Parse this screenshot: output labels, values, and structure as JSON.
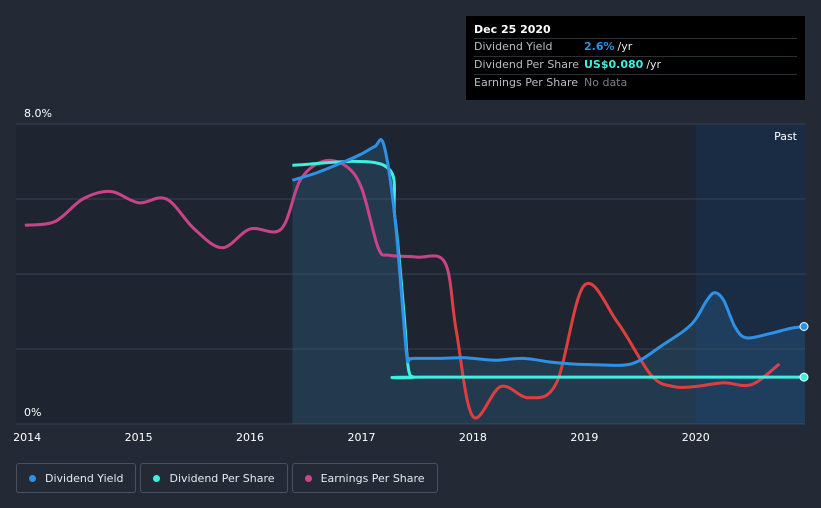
{
  "tooltip": {
    "date": "Dec 25 2020",
    "rows": [
      {
        "label": "Dividend Yield",
        "value": "2.6%",
        "unit": "/yr",
        "color": "#2e91e5"
      },
      {
        "label": "Dividend Per Share",
        "value": "US$0.080",
        "unit": "/yr",
        "color": "#3ff0e0"
      },
      {
        "label": "Earnings Per Share",
        "value": "No data",
        "unit": "",
        "color": "#7a7f88"
      }
    ]
  },
  "past_label": "Past",
  "legend": [
    {
      "label": "Dividend Yield",
      "color": "#2e91e5"
    },
    {
      "label": "Dividend Per Share",
      "color": "#3ff0e0"
    },
    {
      "label": "Earnings Per Share",
      "color": "#d0458a"
    }
  ],
  "colors": {
    "background": "#232a36",
    "past_region": "#1a2b44",
    "yield": "#2e91e5",
    "dps": "#3ff0e0",
    "eps_high": "#c94389",
    "eps_low": "#e03e3e",
    "grid": "#3a4150"
  },
  "chart_data": {
    "type": "line",
    "title": "",
    "xlabel": "",
    "ylabel": "",
    "xlim": [
      2013.9,
      2020.98
    ],
    "ylim": [
      0,
      8
    ],
    "y_ticks": [
      {
        "value": 8,
        "label": "8.0%"
      },
      {
        "value": 0,
        "label": "0%"
      }
    ],
    "y_gridlines": [
      0,
      2,
      4,
      6,
      8
    ],
    "x_ticks": [
      {
        "value": 2014,
        "label": "2014"
      },
      {
        "value": 2015,
        "label": "2015"
      },
      {
        "value": 2016,
        "label": "2016"
      },
      {
        "value": 2017,
        "label": "2017"
      },
      {
        "value": 2018,
        "label": "2018"
      },
      {
        "value": 2019,
        "label": "2019"
      },
      {
        "value": 2020,
        "label": "2020"
      }
    ],
    "past_start": 2020.0,
    "series": [
      {
        "name": "Dividend Yield",
        "unit": "%",
        "area": true,
        "x": [
          2016.38,
          2016.6,
          2016.85,
          2017.0,
          2017.12,
          2017.2,
          2017.3,
          2017.4,
          2017.43,
          2017.46,
          2017.5,
          2017.7,
          2017.9,
          2018.0,
          2018.2,
          2018.45,
          2018.7,
          2018.9,
          2019.1,
          2019.35,
          2019.5,
          2019.7,
          2019.9,
          2020.0,
          2020.1,
          2020.17,
          2020.25,
          2020.35,
          2020.45,
          2020.65,
          2020.85,
          2020.98
        ],
        "y": [
          6.5,
          6.7,
          7.0,
          7.2,
          7.4,
          7.45,
          5.5,
          2.0,
          1.75,
          1.75,
          1.75,
          1.75,
          1.77,
          1.75,
          1.7,
          1.75,
          1.65,
          1.6,
          1.58,
          1.57,
          1.7,
          2.1,
          2.5,
          2.8,
          3.3,
          3.5,
          3.3,
          2.6,
          2.3,
          2.4,
          2.55,
          2.6
        ]
      },
      {
        "name": "Dividend Per Share",
        "unit": "US$",
        "area": false,
        "x": [
          2016.38,
          2017.2,
          2017.3,
          2017.38,
          2017.42,
          2017.47,
          2017.55,
          2020.98
        ],
        "y": [
          6.9,
          6.9,
          5.5,
          3.0,
          1.5,
          1.25,
          1.25,
          1.25
        ]
      },
      {
        "name": "Earnings Per Share",
        "unit": "US$",
        "area": false,
        "x": [
          2013.98,
          2014.25,
          2014.5,
          2014.75,
          2015.0,
          2015.25,
          2015.5,
          2015.75,
          2016.0,
          2016.28,
          2016.45,
          2016.65,
          2016.85,
          2017.0,
          2017.15,
          2017.25,
          2017.5,
          2017.75,
          2017.85,
          2018.0,
          2018.25,
          2018.5,
          2018.75,
          2019.0,
          2019.3,
          2019.6,
          2019.8,
          2020.0,
          2020.25,
          2020.5,
          2020.75
        ],
        "y": [
          5.3,
          5.4,
          6.0,
          6.2,
          5.9,
          6.0,
          5.2,
          4.7,
          5.2,
          5.2,
          6.5,
          7.0,
          6.9,
          6.3,
          4.7,
          4.5,
          4.45,
          4.3,
          2.5,
          0.2,
          1.0,
          0.7,
          1.1,
          3.7,
          2.7,
          1.3,
          1.0,
          1.0,
          1.1,
          1.05,
          1.6
        ]
      }
    ]
  }
}
